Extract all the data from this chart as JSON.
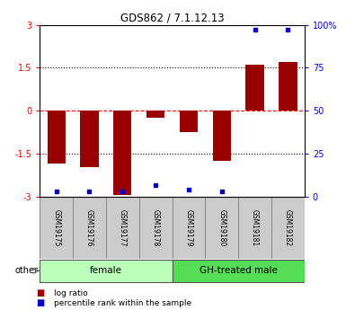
{
  "title": "GDS862 / 7.1.12.13",
  "samples": [
    "GSM19175",
    "GSM19176",
    "GSM19177",
    "GSM19178",
    "GSM19179",
    "GSM19180",
    "GSM19181",
    "GSM19182"
  ],
  "log_ratios": [
    -1.85,
    -1.95,
    -2.95,
    -0.25,
    -0.75,
    -1.75,
    1.6,
    1.7
  ],
  "percentile_ranks": [
    3,
    3,
    3,
    7,
    4,
    3,
    97,
    97
  ],
  "group_colors_female": "#bbffbb",
  "group_colors_gh": "#55dd55",
  "bar_color": "#990000",
  "dot_color": "#0000cc",
  "ylim": [
    -3,
    3
  ],
  "y2lim": [
    0,
    100
  ],
  "yticks": [
    -3,
    -1.5,
    0,
    1.5,
    3
  ],
  "y2ticks": [
    0,
    25,
    50,
    75,
    100
  ],
  "ytick_labels": [
    "-3",
    "-1.5",
    "0",
    "1.5",
    "3"
  ],
  "y2tick_labels": [
    "0",
    "25",
    "50",
    "75",
    "100%"
  ],
  "legend_log_ratio": "log ratio",
  "legend_percentile": "percentile rank within the sample",
  "other_label": "other"
}
